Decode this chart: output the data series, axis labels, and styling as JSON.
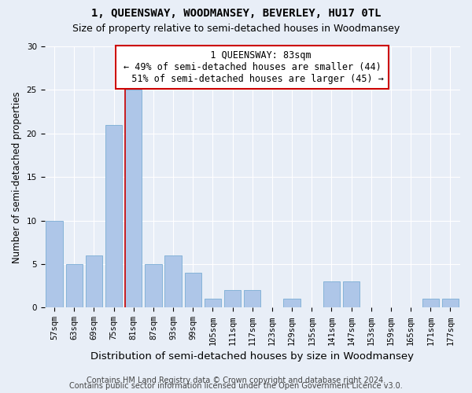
{
  "title": "1, QUEENSWAY, WOODMANSEY, BEVERLEY, HU17 0TL",
  "subtitle": "Size of property relative to semi-detached houses in Woodmansey",
  "xlabel": "Distribution of semi-detached houses by size in Woodmansey",
  "ylabel": "Number of semi-detached properties",
  "categories": [
    "57sqm",
    "63sqm",
    "69sqm",
    "75sqm",
    "81sqm",
    "87sqm",
    "93sqm",
    "99sqm",
    "105sqm",
    "111sqm",
    "117sqm",
    "123sqm",
    "129sqm",
    "135sqm",
    "141sqm",
    "147sqm",
    "153sqm",
    "159sqm",
    "165sqm",
    "171sqm",
    "177sqm"
  ],
  "values": [
    10,
    5,
    6,
    21,
    25,
    5,
    6,
    4,
    1,
    2,
    2,
    0,
    1,
    0,
    3,
    3,
    0,
    0,
    0,
    1,
    1
  ],
  "bar_color": "#aec6e8",
  "bar_edgecolor": "#7aadd4",
  "property_label_line1": "1 QUEENSWAY: 83sqm",
  "property_label_line2": "← 49% of semi-detached houses are smaller (44)",
  "property_label_line3": "51% of semi-detached houses are larger (45) →",
  "vline_index": 4,
  "vline_color": "#cc0000",
  "annotation_box_edgecolor": "#cc0000",
  "ylim": [
    0,
    30
  ],
  "yticks": [
    0,
    5,
    10,
    15,
    20,
    25,
    30
  ],
  "bg_color": "#e8eef7",
  "plot_bg_color": "#e8eef7",
  "footer1": "Contains HM Land Registry data © Crown copyright and database right 2024.",
  "footer2": "Contains public sector information licensed under the Open Government Licence v3.0.",
  "title_fontsize": 10,
  "subtitle_fontsize": 9,
  "xlabel_fontsize": 9.5,
  "ylabel_fontsize": 8.5,
  "tick_fontsize": 7.5,
  "footer_fontsize": 7,
  "annot_fontsize": 8.5
}
